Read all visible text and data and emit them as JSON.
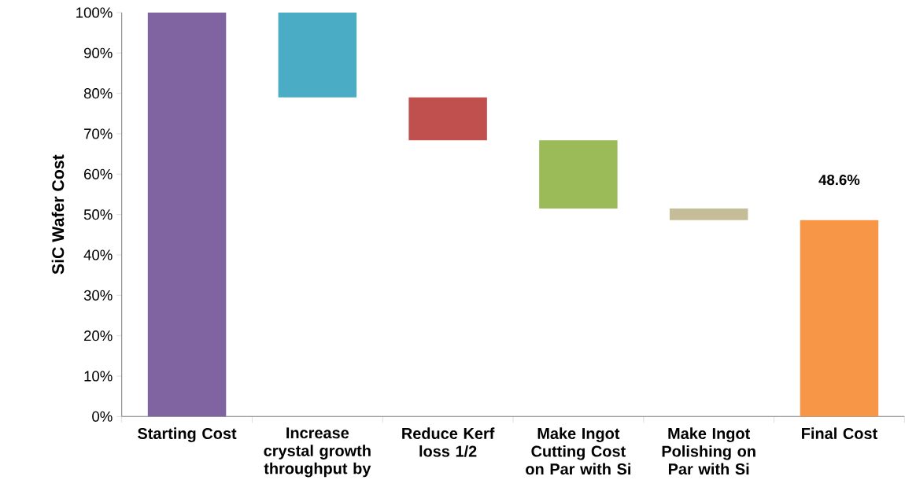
{
  "chart_data": {
    "type": "bar",
    "ylabel": "SiC Wafer Cost",
    "categories": [
      "Starting Cost",
      "Increase crystal growth throughput by",
      "Reduce Kerf loss 1/2",
      "Make Ingot Cutting Cost on Par with Si",
      "Make Ingot Polishing on Par with Si",
      "Final Cost"
    ],
    "base": [
      0,
      100,
      79,
      68.4,
      51.5,
      0
    ],
    "values": [
      100,
      -21,
      -10.6,
      -16.9,
      -2.9,
      48.6
    ],
    "colors": [
      "#8064a2",
      "#4bacc6",
      "#c0504d",
      "#9bbb59",
      "#c4bd97",
      "#f79646"
    ],
    "value_labels": [
      null,
      null,
      null,
      null,
      null,
      "48.6%"
    ],
    "ylim": [
      0,
      100
    ],
    "yticks": [
      {
        "value": 0,
        "label": "0%"
      },
      {
        "value": 10,
        "label": "10%"
      },
      {
        "value": 20,
        "label": "20%"
      },
      {
        "value": 30,
        "label": "30%"
      },
      {
        "value": 40,
        "label": "40%"
      },
      {
        "value": 50,
        "label": "50%"
      },
      {
        "value": 60,
        "label": "60%"
      },
      {
        "value": 70,
        "label": "70%"
      },
      {
        "value": 80,
        "label": "80%"
      },
      {
        "value": 90,
        "label": "90%"
      },
      {
        "value": 100,
        "label": "100%"
      }
    ],
    "grid": false
  }
}
